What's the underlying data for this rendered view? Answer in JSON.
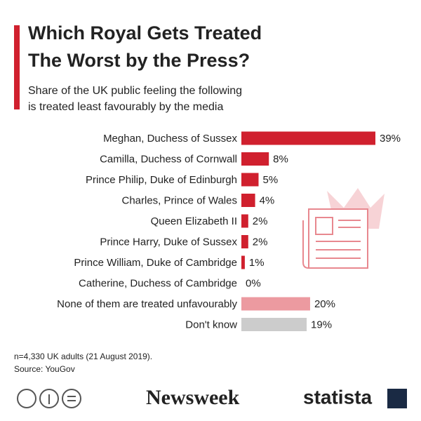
{
  "chart_data": {
    "type": "bar",
    "orientation": "horizontal",
    "title": [
      "Which Royal Gets Treated",
      "The Worst by the Press?"
    ],
    "subtitle": [
      "Share of the UK public feeling the following",
      "is treated least favourably by the media"
    ],
    "categories": [
      "Meghan, Duchess of Sussex",
      "Camilla, Duchess of Cornwall",
      "Prince Philip, Duke of Edinburgh",
      "Charles, Prince of Wales",
      "Queen Elizabeth II",
      "Prince Harry, Duke of Sussex",
      "Prince William, Duke of Cambridge",
      "Catherine, Duchess of Cambridge",
      "None of them are treated unfavourably",
      "Don't know"
    ],
    "values": [
      39,
      8,
      5,
      4,
      2,
      2,
      1,
      0,
      20,
      19
    ],
    "value_labels": [
      "39%",
      "8%",
      "5%",
      "4%",
      "2%",
      "2%",
      "1%",
      "0%",
      "20%",
      "19%"
    ],
    "colors": [
      "#d0202e",
      "#d0202e",
      "#d0202e",
      "#d0202e",
      "#d0202e",
      "#d0202e",
      "#d0202e",
      "#d0202e",
      "#ec9aa0",
      "#cccccc"
    ],
    "note": "n=4,330 UK adults (21 August 2019).",
    "source": "Source: YouGov",
    "logos": [
      "Newsweek",
      "statista"
    ]
  }
}
